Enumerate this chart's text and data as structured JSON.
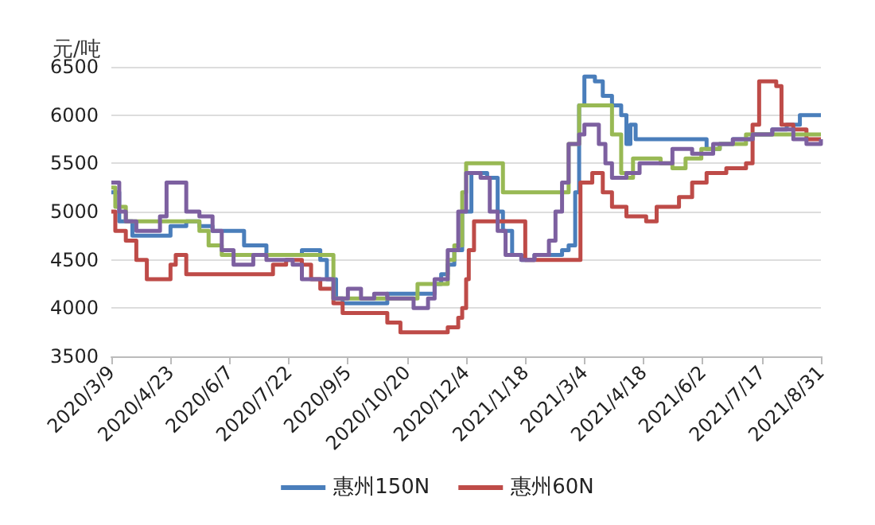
{
  "chart_data": {
    "type": "step",
    "ylabel": "元/吨",
    "xlim": [
      "2020-03-09",
      "2021-08-31"
    ],
    "xticks": [
      {
        "value": "2020-03-09",
        "label": "2020/3/9"
      },
      {
        "value": "2020-04-23",
        "label": "2020/4/23"
      },
      {
        "value": "2020-06-07",
        "label": "2020/6/7"
      },
      {
        "value": "2020-07-22",
        "label": "2020/7/22"
      },
      {
        "value": "2020-09-05",
        "label": "2020/9/5"
      },
      {
        "value": "2020-10-20",
        "label": "2020/10/20"
      },
      {
        "value": "2020-12-04",
        "label": "2020/12/4"
      },
      {
        "value": "2021-01-18",
        "label": "2021/1/18"
      },
      {
        "value": "2021-03-04",
        "label": "2021/3/4"
      },
      {
        "value": "2021-04-18",
        "label": "2021/4/18"
      },
      {
        "value": "2021-06-02",
        "label": "2021/6/2"
      },
      {
        "value": "2021-07-17",
        "label": "2021/7/17"
      },
      {
        "value": "2021-08-31",
        "label": "2021/8/31"
      }
    ],
    "ylim": [
      3500,
      6500
    ],
    "yticks": [
      3500,
      4000,
      4500,
      5000,
      5500,
      6000,
      6500
    ],
    "grid": "y",
    "legend": "bottom",
    "marker": "none",
    "line_style": "solid",
    "series": [
      {
        "name": "惠州150N",
        "color": "#4a7ebb",
        "x": [
          "2020-03-09",
          "2020-03-15",
          "2020-03-25",
          "2020-04-23",
          "2020-05-05",
          "2020-05-15",
          "2020-05-25",
          "2020-06-18",
          "2020-07-05",
          "2020-08-01",
          "2020-08-15",
          "2020-08-20",
          "2020-08-27",
          "2020-09-01",
          "2020-10-05",
          "2020-11-10",
          "2020-11-15",
          "2020-11-20",
          "2020-11-25",
          "2020-12-01",
          "2020-12-08",
          "2020-12-20",
          "2020-12-28",
          "2021-01-01",
          "2021-01-08",
          "2021-01-15",
          "2021-01-25",
          "2021-02-15",
          "2021-02-20",
          "2021-02-25",
          "2021-02-28",
          "2021-03-04",
          "2021-03-12",
          "2021-03-18",
          "2021-03-25",
          "2021-04-01",
          "2021-04-05",
          "2021-04-08",
          "2021-04-12",
          "2021-06-05",
          "2021-06-15",
          "2021-06-25",
          "2021-07-10",
          "2021-07-25",
          "2021-08-05",
          "2021-08-15",
          "2021-08-31"
        ],
        "values": [
          5200,
          4900,
          4750,
          4850,
          4900,
          4850,
          4800,
          4650,
          4550,
          4600,
          4500,
          4300,
          4100,
          4050,
          4150,
          4250,
          4350,
          4450,
          4600,
          5000,
          5400,
          5350,
          5000,
          4800,
          4550,
          4500,
          4550,
          4600,
          4650,
          5200,
          6100,
          6400,
          6350,
          6200,
          6100,
          6000,
          5700,
          5900,
          5750,
          5650,
          5700,
          5750,
          5800,
          5850,
          5900,
          6000,
          6000
        ]
      },
      {
        "name": "惠州60N",
        "color": "#be4b48",
        "x": [
          "2020-03-09",
          "2020-03-12",
          "2020-03-20",
          "2020-03-28",
          "2020-04-05",
          "2020-04-23",
          "2020-04-27",
          "2020-05-05",
          "2020-07-10",
          "2020-07-20",
          "2020-08-01",
          "2020-08-08",
          "2020-08-15",
          "2020-08-25",
          "2020-09-01",
          "2020-10-05",
          "2020-10-15",
          "2020-11-20",
          "2020-11-28",
          "2020-12-01",
          "2020-12-04",
          "2020-12-06",
          "2020-12-10",
          "2021-01-18",
          "2021-03-01",
          "2021-03-10",
          "2021-03-18",
          "2021-03-25",
          "2021-04-05",
          "2021-04-20",
          "2021-04-28",
          "2021-05-15",
          "2021-05-25",
          "2021-06-05",
          "2021-06-20",
          "2021-07-05",
          "2021-07-10",
          "2021-07-15",
          "2021-07-28",
          "2021-08-01",
          "2021-08-10",
          "2021-08-20",
          "2021-08-31"
        ],
        "values": [
          5000,
          4800,
          4700,
          4500,
          4300,
          4450,
          4550,
          4350,
          4450,
          4500,
          4450,
          4300,
          4200,
          4050,
          3950,
          3850,
          3750,
          3800,
          3900,
          4000,
          4300,
          4600,
          4900,
          4500,
          5300,
          5400,
          5200,
          5050,
          4950,
          4900,
          5050,
          5150,
          5300,
          5400,
          5450,
          5500,
          5900,
          6350,
          6300,
          5900,
          5850,
          5750,
          5750
        ]
      },
      {
        "color": "#98b954",
        "x": [
          "2020-03-09",
          "2020-03-12",
          "2020-03-20",
          "2020-05-15",
          "2020-05-22",
          "2020-06-01",
          "2020-08-25",
          "2020-10-28",
          "2020-11-20",
          "2020-11-25",
          "2020-12-01",
          "2020-12-04",
          "2021-01-01",
          "2021-02-20",
          "2021-02-28",
          "2021-03-25",
          "2021-04-01",
          "2021-04-05",
          "2021-04-10",
          "2021-05-01",
          "2021-05-10",
          "2021-05-20",
          "2021-06-01",
          "2021-06-15",
          "2021-07-05",
          "2021-08-31"
        ],
        "values": [
          5250,
          5050,
          4900,
          4800,
          4650,
          4550,
          4100,
          4250,
          4500,
          4650,
          5200,
          5500,
          5200,
          5700,
          6100,
          5800,
          5400,
          5350,
          5550,
          5500,
          5450,
          5550,
          5650,
          5700,
          5800,
          5800
        ]
      },
      {
        "color": "#7d60a0",
        "x": [
          "2020-03-09",
          "2020-03-15",
          "2020-03-20",
          "2020-03-28",
          "2020-04-15",
          "2020-04-20",
          "2020-05-05",
          "2020-05-15",
          "2020-05-25",
          "2020-06-01",
          "2020-06-10",
          "2020-06-25",
          "2020-07-05",
          "2020-07-25",
          "2020-08-01",
          "2020-08-25",
          "2020-09-05",
          "2020-09-15",
          "2020-09-25",
          "2020-10-05",
          "2020-10-25",
          "2020-11-05",
          "2020-11-10",
          "2020-11-20",
          "2020-11-28",
          "2020-12-04",
          "2020-12-15",
          "2020-12-22",
          "2020-12-28",
          "2021-01-03",
          "2021-01-15",
          "2021-01-25",
          "2021-02-05",
          "2021-02-10",
          "2021-02-15",
          "2021-02-20",
          "2021-02-28",
          "2021-03-04",
          "2021-03-15",
          "2021-03-20",
          "2021-03-25",
          "2021-04-05",
          "2021-04-15",
          "2021-05-10",
          "2021-05-25",
          "2021-06-10",
          "2021-06-25",
          "2021-07-10",
          "2021-07-25",
          "2021-08-10",
          "2021-08-20",
          "2021-08-31"
        ],
        "values": [
          5300,
          5000,
          4900,
          4800,
          4950,
          5300,
          5000,
          4950,
          4800,
          4600,
          4450,
          4550,
          4500,
          4450,
          4300,
          4100,
          4200,
          4100,
          4150,
          4100,
          4000,
          4100,
          4300,
          4600,
          5000,
          5400,
          5350,
          5000,
          4800,
          4550,
          4500,
          4550,
          4700,
          5000,
          5300,
          5700,
          5800,
          5900,
          5700,
          5500,
          5350,
          5400,
          5500,
          5650,
          5600,
          5700,
          5750,
          5800,
          5850,
          5750,
          5700,
          5750
        ]
      }
    ]
  }
}
